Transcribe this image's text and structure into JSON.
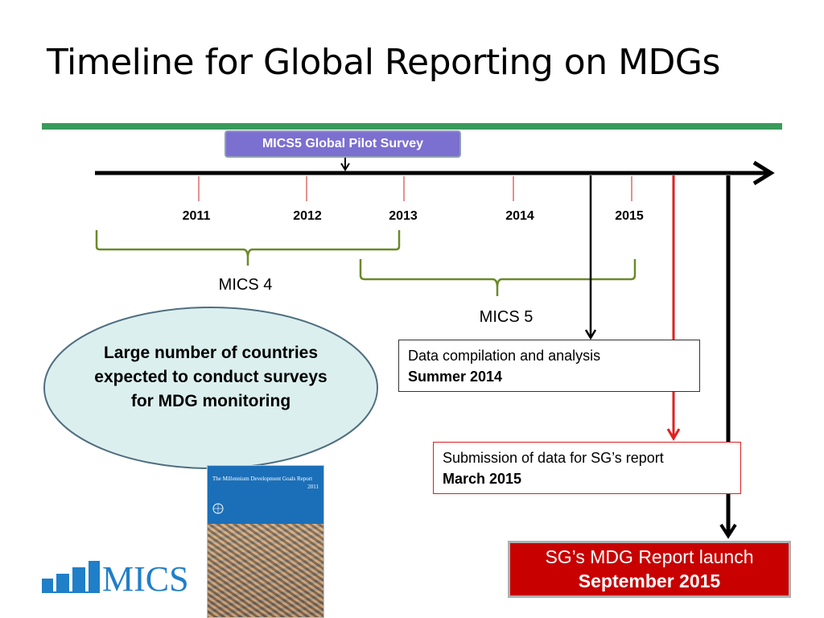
{
  "title": "Timeline for Global Reporting on MDGs",
  "pilot_label": "MICS5 Global Pilot Survey",
  "timeline": {
    "years": [
      "2011",
      "2012",
      "2013",
      "2014",
      "2015"
    ]
  },
  "phases": {
    "mics4": "MICS 4",
    "mics5": "MICS 5"
  },
  "ellipse_text": "Large number of countries expected to conduct surveys for MDG monitoring",
  "milestones": {
    "compilation": {
      "line1": "Data compilation and analysis",
      "line2": "Summer 2014"
    },
    "submission": {
      "line1": "Submission of data for SG’s report",
      "line2": "March 2015"
    },
    "launch": {
      "line1": "SG’s MDG Report launch",
      "line2": "September 2015"
    }
  },
  "report_cover": {
    "title": "The Millennium Development Goals Report",
    "year": "2011"
  },
  "logo_text": "MICS",
  "colors": {
    "rule_green": "#3a9a5b",
    "brace_green": "#6a8a2a",
    "pilot_purple": "#7b6fd0",
    "submission_red": "#e02020",
    "launch_red": "#c80000",
    "logo_blue": "#1f7fc9"
  }
}
